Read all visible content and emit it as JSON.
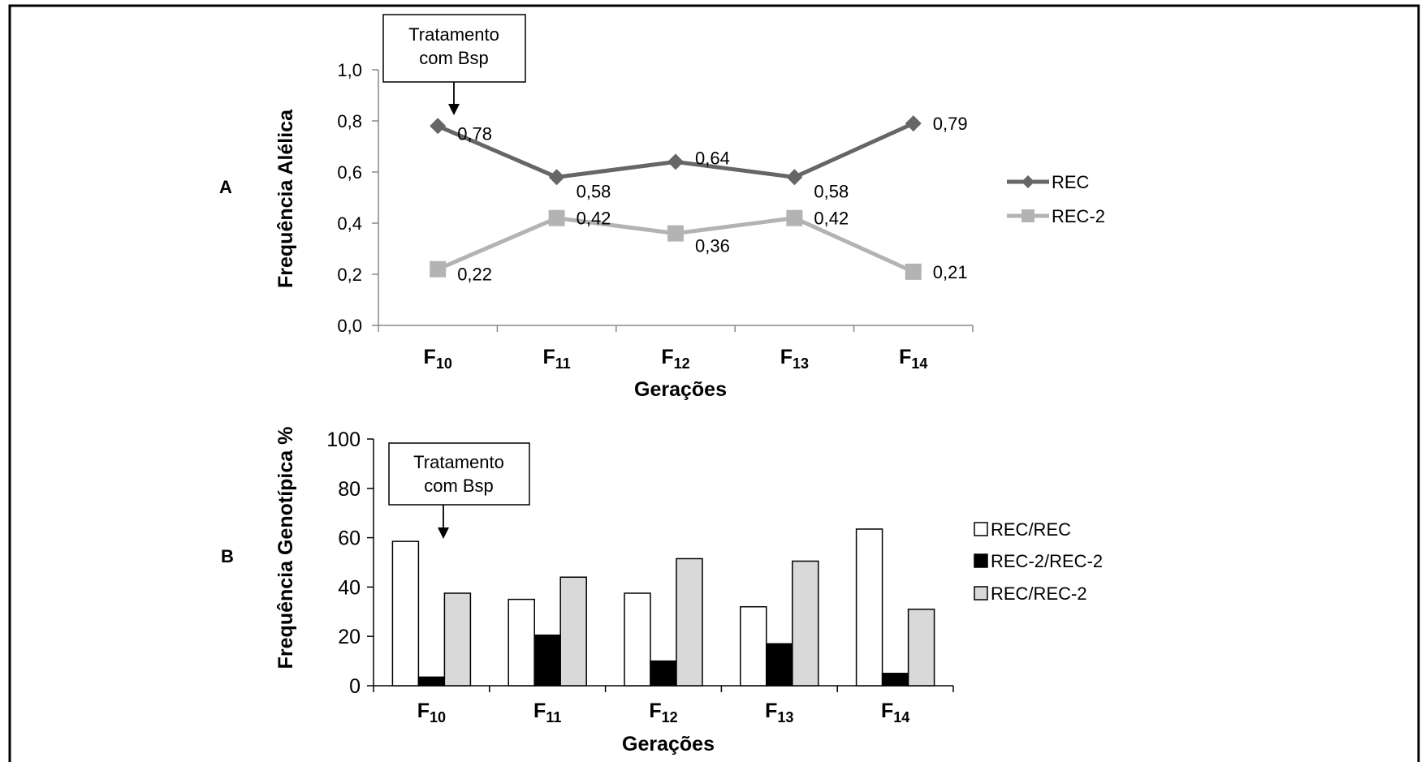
{
  "chart_data": [
    {
      "type": "line",
      "panel_label": "A",
      "categories": [
        {
          "base": "F",
          "sub": "10"
        },
        {
          "base": "F",
          "sub": "11"
        },
        {
          "base": "F",
          "sub": "12"
        },
        {
          "base": "F",
          "sub": "13"
        },
        {
          "base": "F",
          "sub": "14"
        }
      ],
      "series": [
        {
          "name": "REC",
          "values": [
            0.78,
            0.58,
            0.64,
            0.58,
            0.79
          ],
          "labels": [
            "0,78",
            "0,58",
            "0,64",
            "0,58",
            "0,79"
          ],
          "color": "#666666",
          "marker": "diamond"
        },
        {
          "name": "REC-2",
          "values": [
            0.22,
            0.42,
            0.36,
            0.42,
            0.21
          ],
          "labels": [
            "0,22",
            "0,42",
            "0,36",
            "0,42",
            "0,21"
          ],
          "color": "#b3b3b3",
          "marker": "square"
        }
      ],
      "yticks": [
        "0,0",
        "0,2",
        "0,4",
        "0,6",
        "0,8",
        "1,0"
      ],
      "ylim": [
        0,
        1
      ],
      "xlabel": "Gerações",
      "ylabel": "Frequência Alélica",
      "annotation": {
        "lines": [
          "Tratamento",
          "com Bsp"
        ],
        "target_category": 0
      },
      "legend_position": "right",
      "grid": false
    },
    {
      "type": "bar",
      "panel_label": "B",
      "categories": [
        {
          "base": "F",
          "sub": "10"
        },
        {
          "base": "F",
          "sub": "11"
        },
        {
          "base": "F",
          "sub": "12"
        },
        {
          "base": "F",
          "sub": "13"
        },
        {
          "base": "F",
          "sub": "14"
        }
      ],
      "series": [
        {
          "name": "REC/REC",
          "values": [
            58.5,
            35,
            37.5,
            32,
            63.5
          ],
          "color": "#ffffff"
        },
        {
          "name": "REC-2/REC-2",
          "values": [
            3.5,
            20.5,
            10,
            17,
            5
          ],
          "color": "#000000"
        },
        {
          "name": "REC/REC-2",
          "values": [
            37.5,
            44,
            51.5,
            50.5,
            31
          ],
          "color": "#d9d9d9"
        }
      ],
      "yticks": [
        "0",
        "20",
        "40",
        "60",
        "80",
        "100"
      ],
      "ylim": [
        0,
        100
      ],
      "xlabel": "Gerações",
      "ylabel": "Frequência Genotípica %",
      "annotation": {
        "lines": [
          "Tratamento",
          "com Bsp"
        ],
        "target_category": 0
      },
      "legend_position": "right",
      "grid": false
    }
  ]
}
